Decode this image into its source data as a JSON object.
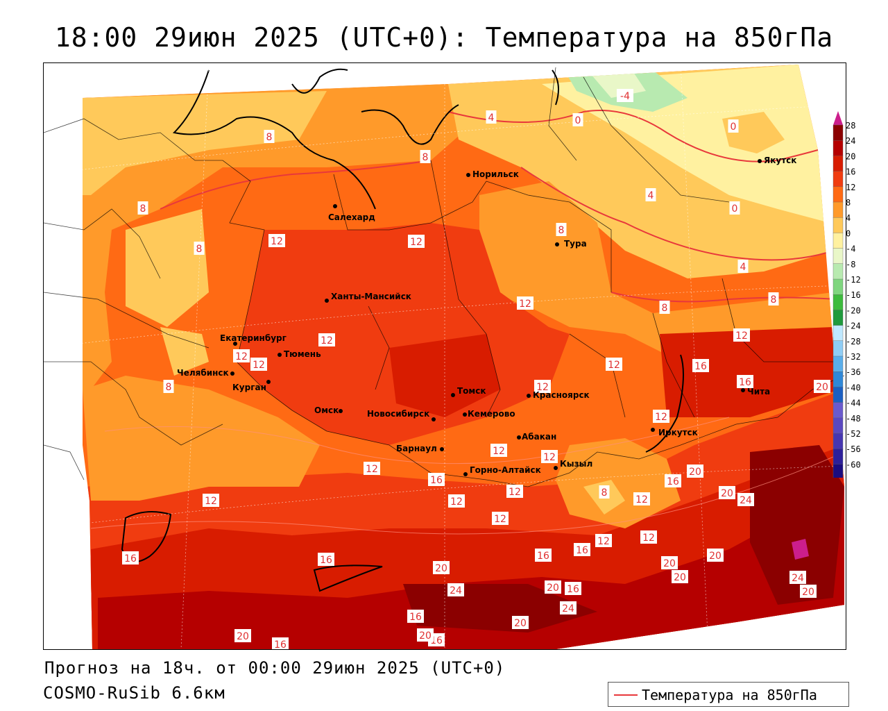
{
  "title": "18:00 29июн 2025 (UTC+0): Температура на 850гПа",
  "footer": {
    "forecast": "Прогноз на 18ч. от 00:00 29июн 2025 (UTC+0)",
    "model": "COSMO-RuSib 6.6км"
  },
  "legend": {
    "label": "Температура на 850гПа",
    "color": "#e8383b"
  },
  "colorbar": {
    "ticks": [
      28,
      24,
      20,
      16,
      12,
      8,
      4,
      0,
      -4,
      -8,
      -12,
      -16,
      -20,
      -24,
      -28,
      -32,
      -36,
      -40,
      -44,
      -48,
      -52,
      -56,
      -60
    ],
    "colors": [
      "#8b0000",
      "#b50000",
      "#d81c00",
      "#f03c10",
      "#ff6a14",
      "#ff9a2a",
      "#ffc95a",
      "#fff1a0",
      "#e9f7c8",
      "#b8eab0",
      "#7fd67f",
      "#3dbb3d",
      "#1f9a3d",
      "#bfe8ff",
      "#8fcdf5",
      "#5aaeea",
      "#2f88d8",
      "#1b5fc2",
      "#6a5acd",
      "#5a48c0",
      "#4636b0",
      "#2d1f9a",
      "#1a0c80"
    ],
    "top_color": "#cc1e8c",
    "bottom_color": "#7b1fa2"
  },
  "cities": [
    {
      "name": "Норильск"
    },
    {
      "name": "Якутск"
    },
    {
      "name": "Салехард"
    },
    {
      "name": "Тура"
    },
    {
      "name": "Ханты-Мансийск"
    },
    {
      "name": "Екатеринбург"
    },
    {
      "name": "Тюмень"
    },
    {
      "name": "Челябинск"
    },
    {
      "name": "Курган"
    },
    {
      "name": "Омск"
    },
    {
      "name": "Новосибирск"
    },
    {
      "name": "Томск"
    },
    {
      "name": "Кемерово"
    },
    {
      "name": "Красноярск"
    },
    {
      "name": "Абакан"
    },
    {
      "name": "Барнаул"
    },
    {
      "name": "Горно-Алтайск"
    },
    {
      "name": "Кызыл"
    },
    {
      "name": "Иркутск"
    },
    {
      "name": "Чита"
    }
  ],
  "contour_labels": [
    "-4",
    "0",
    "4",
    "8",
    "12",
    "16",
    "20",
    "24"
  ]
}
